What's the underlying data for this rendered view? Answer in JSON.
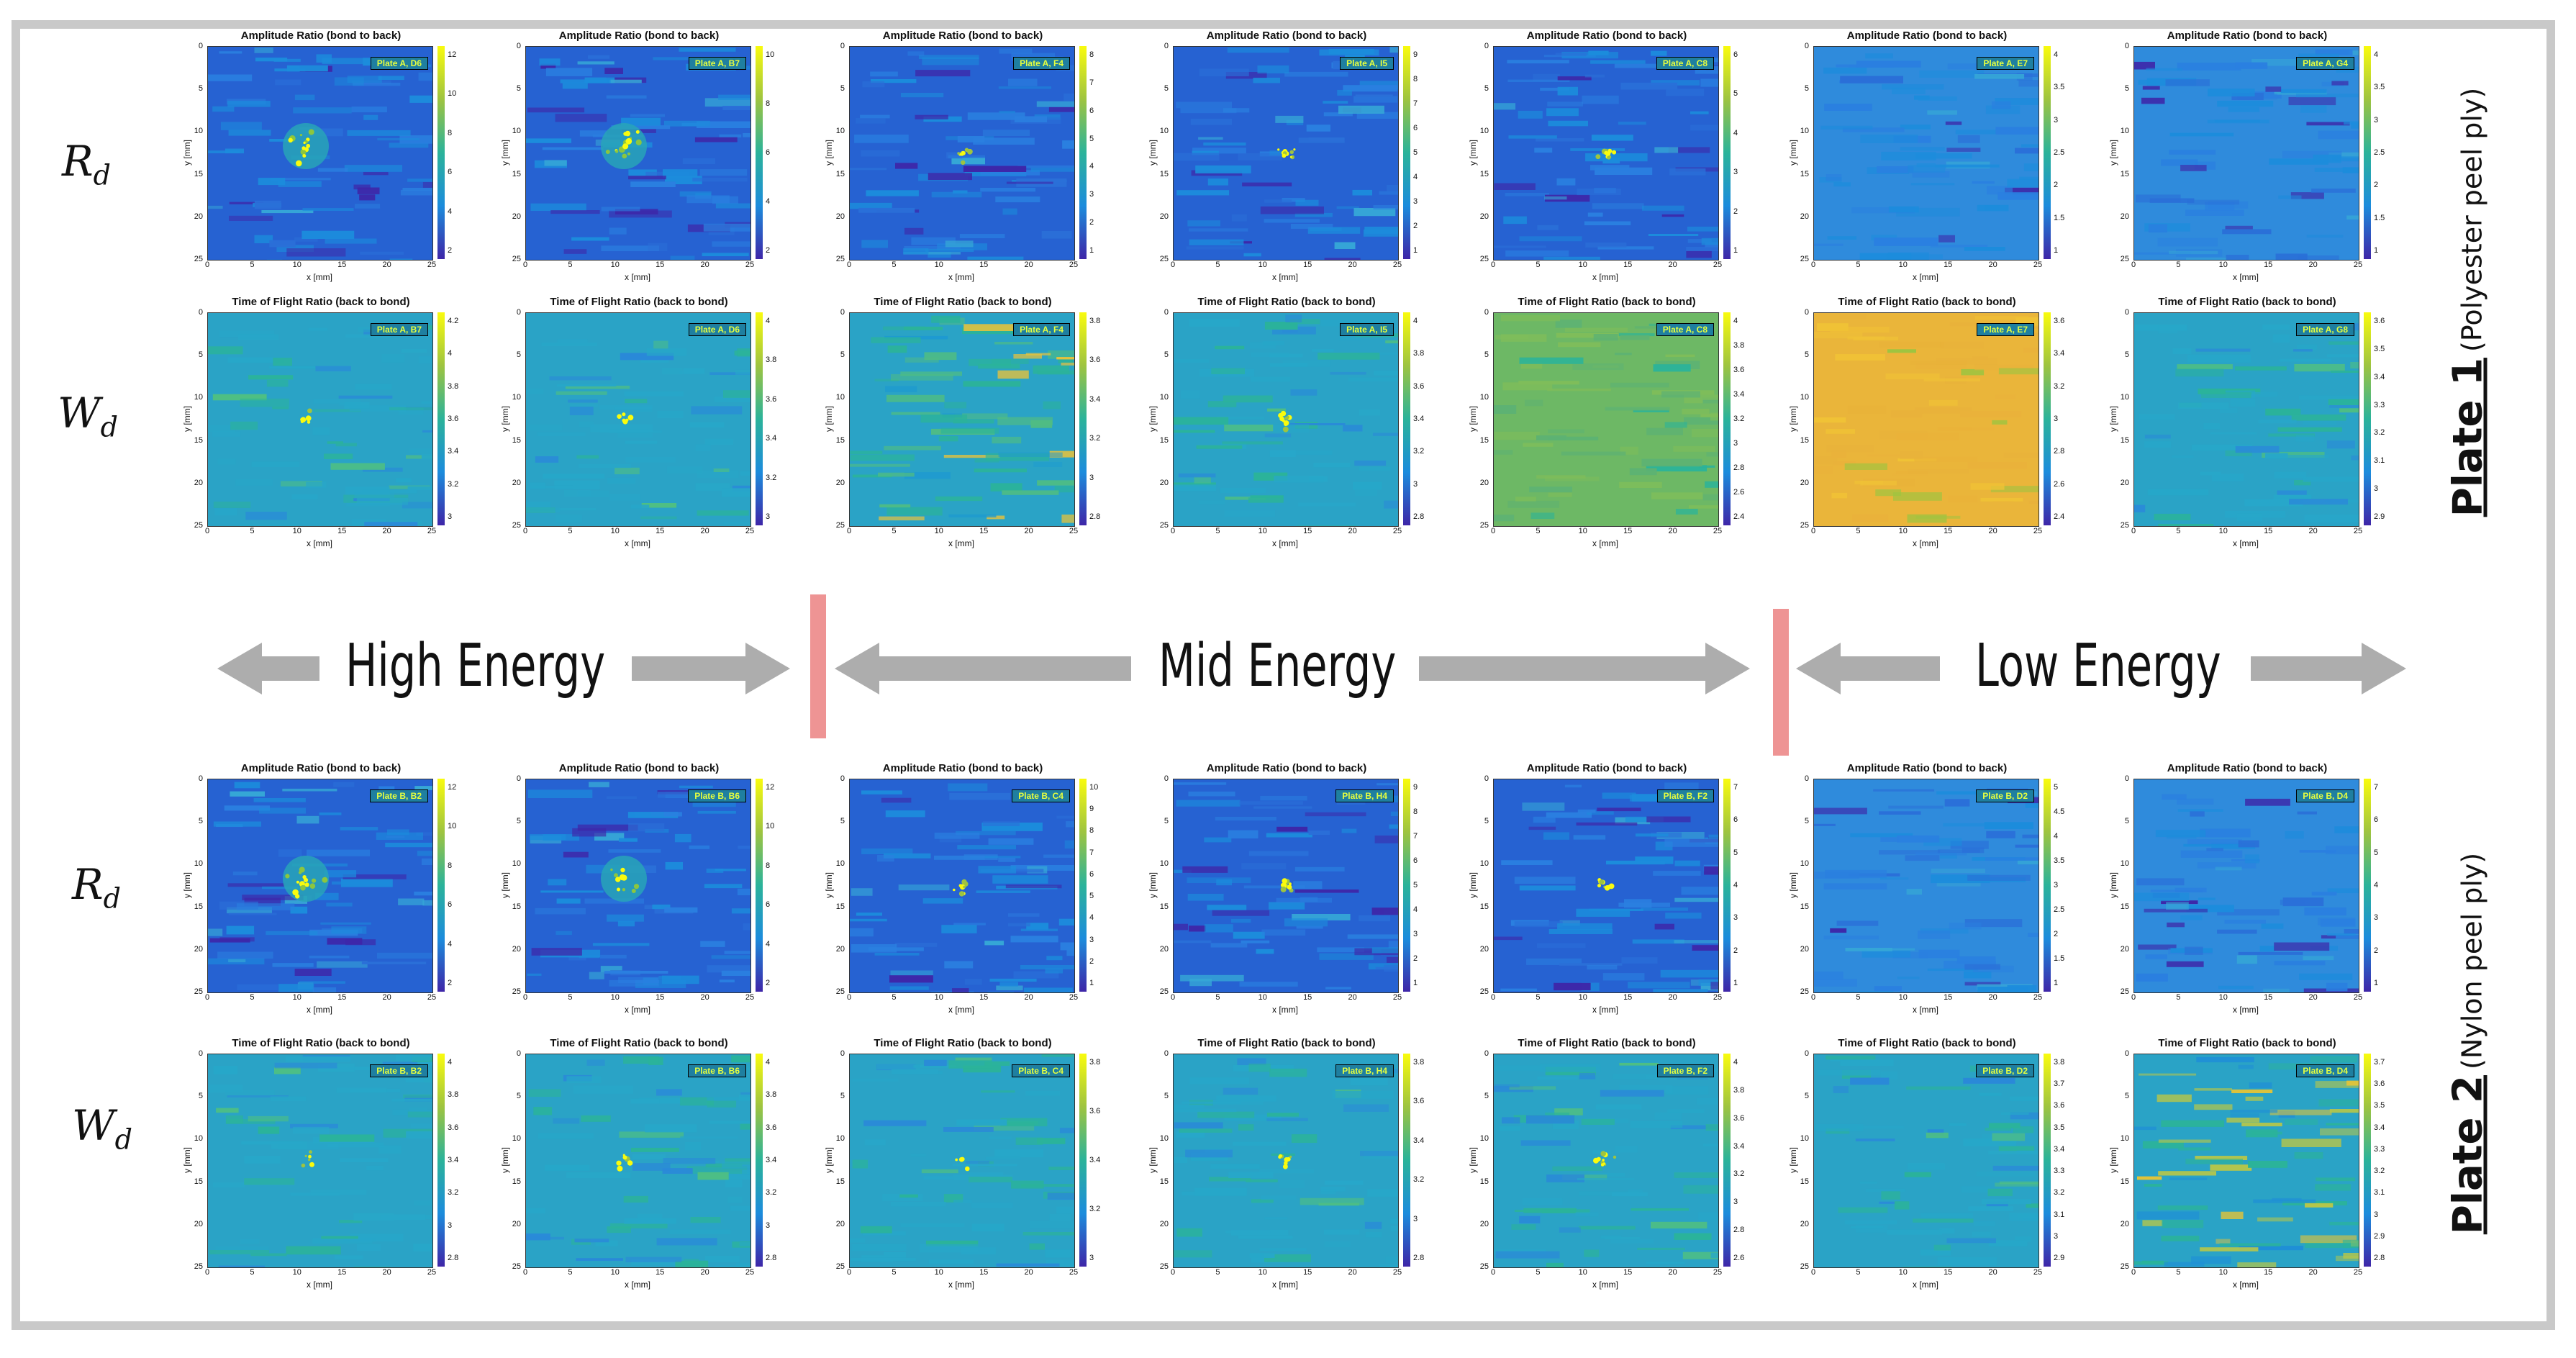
{
  "row_labels": {
    "amplitude": {
      "base": "R",
      "sub": "d"
    },
    "flight": {
      "base": "W",
      "sub": "d"
    }
  },
  "plates": [
    {
      "name": "Plate 1",
      "peel": "(Polyester peel ply)"
    },
    {
      "name": "Plate 2",
      "peel": "(Nylon peel ply)"
    }
  ],
  "energy": {
    "high": "High Energy",
    "mid": "Mid Energy",
    "low": "Low Energy"
  },
  "titles": {
    "amplitude": "Amplitude Ratio (bond to back)",
    "flight": "Time of Flight Ratio (back to bond)"
  },
  "axes": {
    "xlabel": "x [mm]",
    "ylabel": "y [mm]",
    "xticks": [
      "0",
      "5",
      "10",
      "15",
      "20",
      "25"
    ],
    "yticks": [
      "0",
      "5",
      "10",
      "15",
      "20",
      "25"
    ]
  },
  "colors": {
    "low": "#3e26a8",
    "mid_low": "#1c8cdc",
    "mid": "#2bb39a",
    "mid_high": "#9ec440",
    "high": "#f9fb0e",
    "divider": "#ee9494",
    "arrow": "#adadad"
  },
  "panels": [
    {
      "row": "p1_amp",
      "col": 0,
      "type": "amplitude",
      "label": "Plate A, D6",
      "cticks": [
        "12",
        "10",
        "8",
        "6",
        "4",
        "2"
      ],
      "defect": "ring"
    },
    {
      "row": "p1_amp",
      "col": 1,
      "type": "amplitude",
      "label": "Plate A, B7",
      "cticks": [
        "10",
        "8",
        "6",
        "4",
        "2"
      ],
      "defect": "ring"
    },
    {
      "row": "p1_amp",
      "col": 2,
      "type": "amplitude",
      "label": "Plate A, F4",
      "cticks": [
        "8",
        "7",
        "6",
        "5",
        "4",
        "3",
        "2",
        "1"
      ],
      "defect": "small"
    },
    {
      "row": "p1_amp",
      "col": 3,
      "type": "amplitude",
      "label": "Plate A, I5",
      "cticks": [
        "9",
        "8",
        "7",
        "6",
        "5",
        "4",
        "3",
        "2",
        "1"
      ],
      "defect": "small"
    },
    {
      "row": "p1_amp",
      "col": 4,
      "type": "amplitude",
      "label": "Plate A, C8",
      "cticks": [
        "6",
        "5",
        "4",
        "3",
        "2",
        "1"
      ],
      "defect": "small"
    },
    {
      "row": "p1_amp",
      "col": 5,
      "type": "amplitude",
      "label": "Plate A, E7",
      "cticks": [
        "4",
        "3.5",
        "3",
        "2.5",
        "2",
        "1.5",
        "1"
      ],
      "defect": "none"
    },
    {
      "row": "p1_amp",
      "col": 6,
      "type": "amplitude",
      "label": "Plate A, G4",
      "cticks": [
        "4",
        "3.5",
        "3",
        "2.5",
        "2",
        "1.5",
        "1"
      ],
      "defect": "none"
    },
    {
      "row": "p1_tof",
      "col": 0,
      "type": "flight",
      "label": "Plate A, B7",
      "cticks": [
        "4.2",
        "4",
        "3.8",
        "3.6",
        "3.4",
        "3.2",
        "3"
      ],
      "defect": "faint"
    },
    {
      "row": "p1_tof",
      "col": 1,
      "type": "flight",
      "label": "Plate A, D6",
      "cticks": [
        "4",
        "3.8",
        "3.6",
        "3.4",
        "3.2",
        "3"
      ],
      "defect": "faint"
    },
    {
      "row": "p1_tof",
      "col": 2,
      "type": "flight",
      "label": "Plate A, F4",
      "cticks": [
        "3.8",
        "3.6",
        "3.4",
        "3.2",
        "3",
        "2.8"
      ],
      "defect": "streaky"
    },
    {
      "row": "p1_tof",
      "col": 3,
      "type": "flight",
      "label": "Plate A, I5",
      "cticks": [
        "4",
        "3.8",
        "3.6",
        "3.4",
        "3.2",
        "3",
        "2.8"
      ],
      "defect": "small"
    },
    {
      "row": "p1_tof",
      "col": 4,
      "type": "flight",
      "label": "Plate A, C8",
      "cticks": [
        "4",
        "3.8",
        "3.6",
        "3.4",
        "3.2",
        "3",
        "2.8",
        "2.6",
        "2.4"
      ],
      "defect": "greenish"
    },
    {
      "row": "p1_tof",
      "col": 5,
      "type": "flight",
      "label": "Plate A, E7",
      "cticks": [
        "3.6",
        "3.4",
        "3.2",
        "3",
        "2.8",
        "2.6",
        "2.4"
      ],
      "defect": "orange"
    },
    {
      "row": "p1_tof",
      "col": 6,
      "type": "flight",
      "label": "Plate A, G8",
      "cticks": [
        "3.6",
        "3.5",
        "3.4",
        "3.3",
        "3.2",
        "3.1",
        "3",
        "2.9"
      ],
      "defect": "none"
    },
    {
      "row": "p2_amp",
      "col": 0,
      "type": "amplitude",
      "label": "Plate B, B2",
      "cticks": [
        "12",
        "10",
        "8",
        "6",
        "4",
        "2"
      ],
      "defect": "ring"
    },
    {
      "row": "p2_amp",
      "col": 1,
      "type": "amplitude",
      "label": "Plate B, B6",
      "cticks": [
        "12",
        "10",
        "8",
        "6",
        "4",
        "2"
      ],
      "defect": "ring"
    },
    {
      "row": "p2_amp",
      "col": 2,
      "type": "amplitude",
      "label": "Plate B, C4",
      "cticks": [
        "10",
        "9",
        "8",
        "7",
        "6",
        "5",
        "4",
        "3",
        "2",
        "1"
      ],
      "defect": "small"
    },
    {
      "row": "p2_amp",
      "col": 3,
      "type": "amplitude",
      "label": "Plate B, H4",
      "cticks": [
        "9",
        "8",
        "7",
        "6",
        "5",
        "4",
        "3",
        "2",
        "1"
      ],
      "defect": "small"
    },
    {
      "row": "p2_amp",
      "col": 4,
      "type": "amplitude",
      "label": "Plate B, F2",
      "cticks": [
        "7",
        "6",
        "5",
        "4",
        "3",
        "2",
        "1"
      ],
      "defect": "small"
    },
    {
      "row": "p2_amp",
      "col": 5,
      "type": "amplitude",
      "label": "Plate B, D2",
      "cticks": [
        "5",
        "4.5",
        "4",
        "3.5",
        "3",
        "2.5",
        "2",
        "1.5",
        "1"
      ],
      "defect": "none"
    },
    {
      "row": "p2_amp",
      "col": 6,
      "type": "amplitude",
      "label": "Plate B, D4",
      "cticks": [
        "7",
        "6",
        "5",
        "4",
        "3",
        "2",
        "1"
      ],
      "defect": "none"
    },
    {
      "row": "p2_tof",
      "col": 0,
      "type": "flight",
      "label": "Plate B, B2",
      "cticks": [
        "4",
        "3.8",
        "3.6",
        "3.4",
        "3.2",
        "3",
        "2.8"
      ],
      "defect": "faint"
    },
    {
      "row": "p2_tof",
      "col": 1,
      "type": "flight",
      "label": "Plate B, B6",
      "cticks": [
        "4",
        "3.8",
        "3.6",
        "3.4",
        "3.2",
        "3",
        "2.8"
      ],
      "defect": "faint"
    },
    {
      "row": "p2_tof",
      "col": 2,
      "type": "flight",
      "label": "Plate B, C4",
      "cticks": [
        "3.8",
        "3.6",
        "3.4",
        "3.2",
        "3"
      ],
      "defect": "faint"
    },
    {
      "row": "p2_tof",
      "col": 3,
      "type": "flight",
      "label": "Plate B, H4",
      "cticks": [
        "3.8",
        "3.6",
        "3.4",
        "3.2",
        "3",
        "2.8"
      ],
      "defect": "small"
    },
    {
      "row": "p2_tof",
      "col": 4,
      "type": "flight",
      "label": "Plate B, F2",
      "cticks": [
        "4",
        "3.8",
        "3.6",
        "3.4",
        "3.2",
        "3",
        "2.8",
        "2.6"
      ],
      "defect": "small"
    },
    {
      "row": "p2_tof",
      "col": 5,
      "type": "flight",
      "label": "Plate B, D2",
      "cticks": [
        "3.8",
        "3.7",
        "3.6",
        "3.5",
        "3.4",
        "3.3",
        "3.2",
        "3.1",
        "3",
        "2.9"
      ],
      "defect": "none"
    },
    {
      "row": "p2_tof",
      "col": 6,
      "type": "flight",
      "label": "Plate B, D4",
      "cticks": [
        "3.7",
        "3.6",
        "3.5",
        "3.4",
        "3.3",
        "3.2",
        "3.1",
        "3",
        "2.9",
        "2.8"
      ],
      "defect": "patchy"
    }
  ]
}
